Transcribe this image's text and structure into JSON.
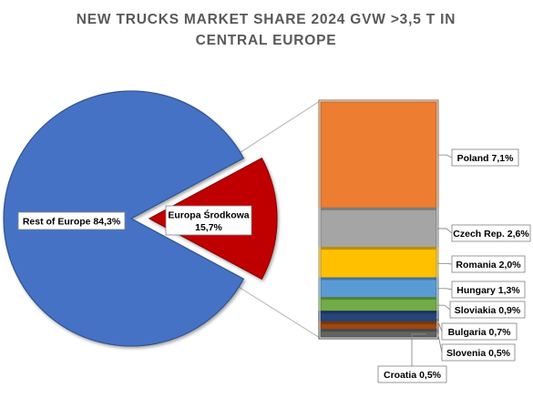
{
  "chart_data": {
    "type": "bar-of-pie",
    "title": "NEW TRUCKS MARKET SHARE 2024 GVW >3,5 T IN CENTRAL EUROPE",
    "title_lines": [
      "NEW TRUCKS MARKET SHARE 2024 GVW >3,5 T IN",
      "CENTRAL EUROPE"
    ],
    "pie": {
      "slices": [
        {
          "name": "Rest of Europe",
          "value": 84.3,
          "label": "Rest of Europe 84,3%",
          "color": "#4472C4"
        },
        {
          "name": "Europa Środkowa",
          "value": 15.7,
          "label_line1": "Europa Środkowa",
          "label_line2": "15,7%",
          "color": "#C00000"
        }
      ]
    },
    "bar": {
      "segments": [
        {
          "name": "Poland",
          "value": 7.1,
          "label": "Poland 7,1%",
          "color": "#ED7D31"
        },
        {
          "name": "Czech Rep.",
          "value": 2.6,
          "label": "Czech Rep. 2,6%",
          "color": "#A5A5A5"
        },
        {
          "name": "Romania",
          "value": 2.0,
          "label": "Romania 2,0%",
          "color": "#FFC000"
        },
        {
          "name": "Hungary",
          "value": 1.3,
          "label": "Hungary 1,3%",
          "color": "#5B9BD5"
        },
        {
          "name": "Sloviakia",
          "value": 0.9,
          "label": "Sloviakia 0,9%",
          "color": "#70AD47"
        },
        {
          "name": "Bulgaria",
          "value": 0.7,
          "label": "Bulgaria 0,7%",
          "color": "#264478"
        },
        {
          "name": "Slovenia",
          "value": 0.5,
          "label": "Slovenia 0,5%",
          "color": "#9E480E"
        },
        {
          "name": "Croatia",
          "value": 0.5,
          "label": "Croatia 0,5%",
          "color": "#636363"
        }
      ]
    },
    "legend": "none",
    "grid": false
  }
}
